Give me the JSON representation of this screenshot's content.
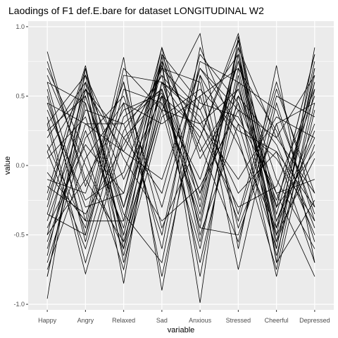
{
  "chart_data": {
    "type": "line",
    "title": "Laodings of F1 def.E.bare for dataset LONGITUDINAL W2",
    "xlabel": "variable",
    "ylabel": "value",
    "categories": [
      "Happy",
      "Angry",
      "Relaxed",
      "Sad",
      "Anxious",
      "Stressed",
      "Cheerful",
      "Depressed"
    ],
    "yticks": [
      -1.0,
      -0.5,
      0.0,
      0.5,
      1.0
    ],
    "ytick_labels": [
      "-1.0",
      "-0.5",
      "0.0",
      "0.5",
      "1.0"
    ],
    "ylim": [
      -1.04,
      1.04
    ],
    "grid": true,
    "panel_background": "#ebebeb",
    "grid_color": "#ffffff",
    "line_color": "#000000",
    "series": [
      {
        "values": [
          0.82,
          -0.15,
          0.6,
          -0.45,
          0.2,
          0.9,
          -0.3,
          0.1
        ]
      },
      {
        "values": [
          -0.96,
          0.7,
          -0.3,
          0.75,
          -0.99,
          0.93,
          -0.7,
          0.85
        ]
      },
      {
        "values": [
          -0.8,
          0.45,
          -0.5,
          0.6,
          0.4,
          -0.2,
          0.1,
          -0.3
        ]
      },
      {
        "values": [
          0.3,
          -0.78,
          0.2,
          0.5,
          -0.4,
          0.8,
          -0.55,
          0.6
        ]
      },
      {
        "values": [
          -0.5,
          0.6,
          -0.85,
          0.8,
          0.1,
          0.55,
          -0.2,
          -0.8
        ]
      },
      {
        "values": [
          0.6,
          -0.4,
          0.78,
          -0.9,
          0.65,
          -0.45,
          0.3,
          -0.55
        ]
      },
      {
        "values": [
          -0.2,
          0.72,
          -0.6,
          0.4,
          0.95,
          -0.6,
          0.72,
          -0.7
        ]
      },
      {
        "values": [
          0.1,
          -0.6,
          0.35,
          0.55,
          -0.2,
          0.45,
          -0.8,
          0.4
        ]
      },
      {
        "values": [
          -0.7,
          0.2,
          0.5,
          -0.3,
          0.7,
          0.4,
          -0.5,
          0.75
        ]
      },
      {
        "values": [
          0.45,
          -0.3,
          -0.2,
          0.78,
          -0.3,
          0.85,
          0.2,
          -0.2
        ]
      },
      {
        "values": [
          -0.35,
          0.55,
          -0.4,
          0.85,
          -0.5,
          0.3,
          -0.6,
          0.7
        ]
      },
      {
        "values": [
          0.7,
          0.1,
          -0.75,
          0.6,
          0.2,
          0.95,
          -0.4,
          0.3
        ]
      },
      {
        "values": [
          -0.1,
          -0.2,
          0.6,
          -0.8,
          0.5,
          -0.35,
          0.6,
          -0.3
        ]
      },
      {
        "values": [
          0.2,
          0.6,
          -0.1,
          0.5,
          -0.7,
          0.5,
          -0.3,
          0.8
        ]
      },
      {
        "values": [
          -0.6,
          0.3,
          0.1,
          0.7,
          0.6,
          -0.75,
          0.45,
          -0.4
        ]
      },
      {
        "values": [
          0.5,
          -0.5,
          0.45,
          -0.6,
          0.85,
          0.2,
          -0.75,
          0.55
        ]
      },
      {
        "values": [
          -0.25,
          0.65,
          -0.55,
          0.45,
          -0.1,
          0.75,
          -0.1,
          -0.6
        ]
      },
      {
        "values": [
          0.35,
          -0.7,
          0.25,
          0.65,
          0.3,
          -0.1,
          0.35,
          0.2
        ]
      },
      {
        "values": [
          -0.8,
          0.5,
          -0.3,
          0.55,
          -0.45,
          0.9,
          -0.45,
          0.65
        ]
      },
      {
        "values": [
          0.65,
          0.0,
          -0.6,
          0.8,
          0.45,
          0.35,
          -0.2,
          -0.1
        ]
      },
      {
        "values": [
          -0.4,
          0.4,
          0.3,
          -0.5,
          0.75,
          0.6,
          -0.65,
          0.45
        ]
      },
      {
        "values": [
          0.15,
          -0.45,
          0.7,
          0.4,
          -0.6,
          0.7,
          0.25,
          -0.45
        ]
      },
      {
        "values": [
          -0.55,
          0.25,
          -0.45,
          0.75,
          0.15,
          -0.55,
          0.5,
          0.35
        ]
      },
      {
        "values": [
          0.75,
          -0.1,
          0.4,
          0.52,
          -0.35,
          0.8,
          -0.35,
          0.6
        ]
      },
      {
        "values": [
          -0.3,
          0.7,
          -0.7,
          0.35,
          0.55,
          0.25,
          0.1,
          -0.7
        ]
      },
      {
        "values": [
          0.4,
          -0.25,
          -0.05,
          0.72,
          -0.8,
          0.65,
          -0.55,
          0.15
        ]
      },
      {
        "values": [
          -0.65,
          0.55,
          0.2,
          -0.2,
          0.8,
          0.45,
          -0.25,
          0.5
        ]
      },
      {
        "values": [
          0.05,
          0.35,
          -0.5,
          0.6,
          0.35,
          -0.4,
          0.55,
          -0.2
        ]
      },
      {
        "values": [
          0.55,
          -0.55,
          0.55,
          0.45,
          -0.25,
          0.85,
          -0.6,
          0.7
        ]
      },
      {
        "values": [
          -0.45,
          0.15,
          -0.2,
          0.85,
          0.05,
          0.5,
          0.15,
          -0.5
        ]
      },
      {
        "values": [
          0.25,
          0.5,
          -0.35,
          -0.7,
          0.65,
          0.15,
          -0.45,
          0.25
        ]
      },
      {
        "values": [
          -0.15,
          -0.35,
          0.15,
          0.65,
          -0.55,
          0.6,
          0.4,
          -0.35
        ]
      },
      {
        "values": [
          0.6,
          0.45,
          -0.65,
          0.5,
          0.25,
          -0.3,
          -0.15,
          0.55
        ]
      },
      {
        "values": [
          -0.75,
          0.05,
          0.45,
          0.3,
          0.5,
          0.7,
          -0.5,
          0.05
        ]
      },
      {
        "values": [
          0.3,
          0.65,
          0.05,
          -0.4,
          -0.15,
          0.4,
          0.2,
          0.65
        ]
      },
      {
        "values": [
          -0.05,
          -0.4,
          -0.4,
          0.7,
          0.4,
          0.8,
          -0.7,
          -0.25
        ]
      },
      {
        "values": [
          0.45,
          0.3,
          0.3,
          0.55,
          -0.45,
          -0.5,
          0.3,
          0.45
        ]
      },
      {
        "values": [
          -0.5,
          -0.1,
          -0.55,
          0.4,
          0.3,
          0.55,
          -0.3,
          0.8
        ]
      },
      {
        "values": [
          0.1,
          0.55,
          0.1,
          -0.1,
          0.7,
          0.3,
          0.05,
          -0.4
        ]
      },
      {
        "values": [
          -0.35,
          -0.5,
          0.65,
          0.6,
          -0.2,
          0.75,
          -0.4,
          0.2
        ]
      }
    ]
  }
}
